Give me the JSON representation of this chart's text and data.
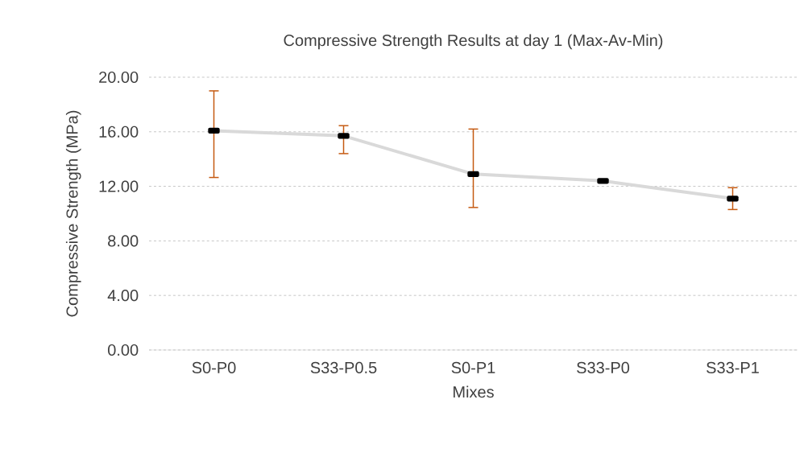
{
  "chart_data": {
    "type": "line",
    "title": "Compressive Strength Results at day 1 (Max-Av-Min)",
    "xlabel": "Mixes",
    "ylabel": "Compressive Strength (MPa)",
    "categories": [
      "S0-P0",
      "S33-P0.5",
      "S0-P1",
      "S33-P0",
      "S33-P1"
    ],
    "values": [
      16.08,
      15.7,
      12.9,
      12.4,
      11.1
    ],
    "errors": [
      [
        12.65,
        19.0
      ],
      [
        14.4,
        16.45
      ],
      [
        10.45,
        16.2
      ],
      null,
      [
        10.3,
        11.9
      ]
    ],
    "color": "#d9d9d9",
    "ylim": [
      0,
      20
    ],
    "yticks": [
      {
        "value": 0,
        "label": "0.00"
      },
      {
        "value": 4,
        "label": "4.00"
      },
      {
        "value": 8,
        "label": "8.00"
      },
      {
        "value": 12,
        "label": "12.00"
      },
      {
        "value": 16,
        "label": "16.00"
      },
      {
        "value": 20,
        "label": "20.00"
      }
    ],
    "grid": "y",
    "marker": "square",
    "line_style": "solid"
  }
}
